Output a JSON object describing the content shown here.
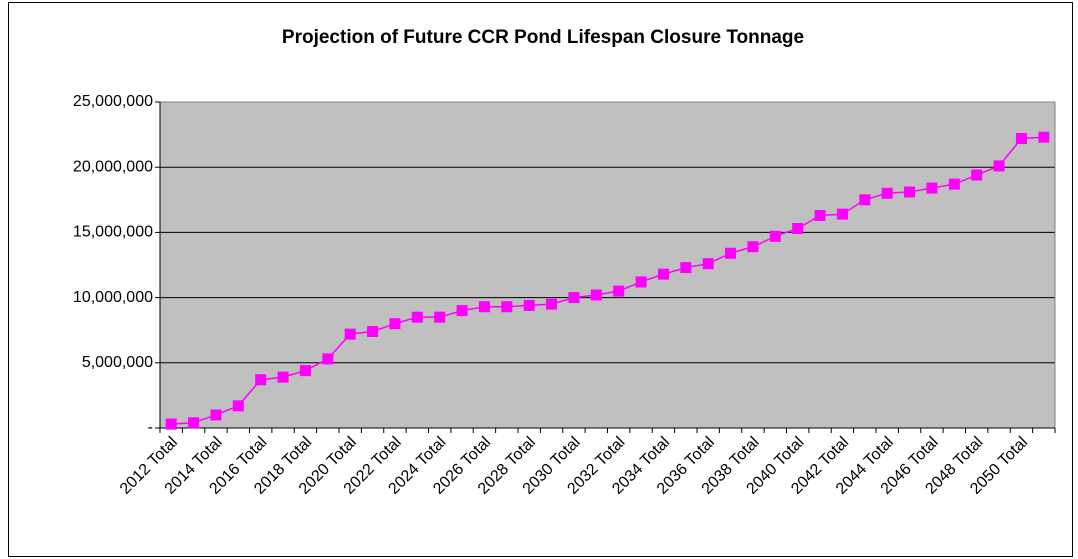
{
  "chart_data": {
    "type": "line",
    "title": "Projection of Future CCR Pond Lifespan Closure Tonnage",
    "categories": [
      "2012 Total",
      null,
      "2014 Total",
      null,
      "2016 Total",
      null,
      "2018 Total",
      null,
      "2020 Total",
      null,
      "2022 Total",
      null,
      "2024 Total",
      null,
      "2026 Total",
      null,
      "2028 Total",
      null,
      "2030 Total",
      null,
      "2032 Total",
      null,
      "2034 Total",
      null,
      "2036 Total",
      null,
      "2038 Total",
      null,
      "2040 Total",
      null,
      "2042 Total",
      null,
      "2044 Total",
      null,
      "2046 Total",
      null,
      "2048 Total",
      null,
      "2050 Total",
      null
    ],
    "values": [
      300000,
      400000,
      1000000,
      1700000,
      3700000,
      3900000,
      4400000,
      5300000,
      7200000,
      7400000,
      8000000,
      8500000,
      8500000,
      9000000,
      9300000,
      9300000,
      9400000,
      9500000,
      10000000,
      10200000,
      10500000,
      11200000,
      11800000,
      12300000,
      12600000,
      13400000,
      13900000,
      14700000,
      15300000,
      16300000,
      16400000,
      17500000,
      18000000,
      18100000,
      18400000,
      18700000,
      19400000,
      20100000,
      22200000,
      22300000
    ],
    "color": "#ff00ff",
    "ylim": [
      0,
      25000000
    ],
    "yticks": [
      {
        "value": 0,
        "label": "-"
      },
      {
        "value": 5000000,
        "label": "5,000,000"
      },
      {
        "value": 10000000,
        "label": "10,000,000"
      },
      {
        "value": 15000000,
        "label": "15,000,000"
      },
      {
        "value": 20000000,
        "label": "20,000,000"
      },
      {
        "value": 25000000,
        "label": "25,000,000"
      }
    ],
    "grid": true
  }
}
